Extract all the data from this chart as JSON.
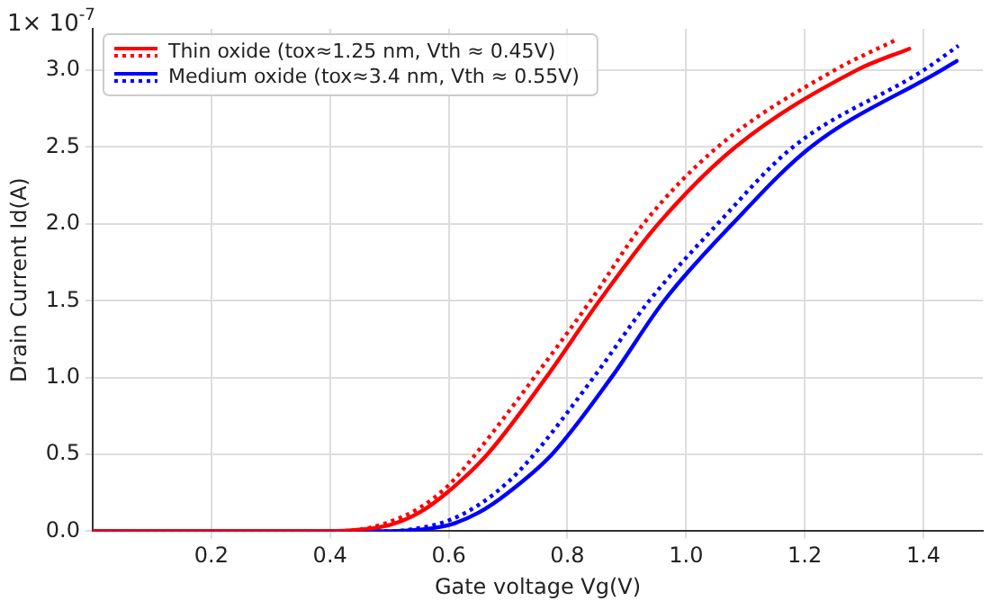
{
  "chart_data": {
    "type": "line",
    "xlabel": "Gate voltage Vg(V)",
    "ylabel": "Drain Current Id(A)",
    "annotations": [
      "1× 10$^{-7}$"
    ],
    "xlim": [
      0,
      1.5
    ],
    "ylim": [
      0,
      3.27
    ],
    "xticks": [
      0.2,
      0.4,
      0.6,
      0.8,
      {
        "value": 1,
        "label": "1.0"
      },
      1.2,
      1.4
    ],
    "yticks": [
      {
        "value": 0,
        "label": "0.0"
      },
      0.5,
      {
        "value": 1,
        "label": "1.0"
      },
      1.5,
      {
        "value": 2,
        "label": "2.0"
      },
      2.5,
      {
        "value": 3,
        "label": "3.0"
      }
    ],
    "grid": true,
    "legend": "top left",
    "marker": "none",
    "series": [
      {
        "name": "Thin oxide (tox≈1.25 nm, Vth ≈ 0.45V)",
        "color": "#ff0000",
        "line_style": "solid",
        "x": [
          0,
          0.4,
          0.45,
          0.5,
          0.55,
          0.6,
          0.665,
          0.764,
          0.854,
          0.953,
          1.083,
          1.287,
          1.376
        ],
        "values": [
          0,
          0,
          0.01,
          0.04,
          0.12,
          0.26,
          0.5,
          1.0,
          1.5,
          2.0,
          2.5,
          3.0,
          3.14
        ]
      },
      {
        "color": "#ff0000",
        "line_style": "dotted",
        "x": [
          0,
          0.4,
          0.45,
          0.5,
          0.55,
          0.6,
          0.645,
          0.744,
          0.839,
          0.928,
          1.053,
          1.25,
          1.355
        ],
        "values": [
          0,
          0,
          0.01,
          0.06,
          0.15,
          0.3,
          0.5,
          1.0,
          1.5,
          2.0,
          2.5,
          3.0,
          3.2
        ]
      },
      {
        "name": "Medium oxide (tox≈3.4 nm, Vth ≈ 0.55V)",
        "color": "#0000ff",
        "line_style": "solid",
        "x": [
          0,
          0.5,
          0.55,
          0.6,
          0.65,
          0.7,
          0.774,
          0.874,
          0.963,
          1.078,
          1.21,
          1.43,
          1.456
        ],
        "values": [
          0,
          0,
          0.01,
          0.04,
          0.12,
          0.25,
          0.5,
          1.0,
          1.5,
          2.0,
          2.5,
          3.0,
          3.06
        ]
      },
      {
        "color": "#0000ff",
        "line_style": "dotted",
        "x": [
          0,
          0.5,
          0.55,
          0.6,
          0.65,
          0.7,
          0.744,
          0.844,
          0.938,
          1.053,
          1.18,
          1.4,
          1.459
        ],
        "values": [
          0,
          0,
          0.02,
          0.07,
          0.17,
          0.32,
          0.5,
          1.0,
          1.5,
          2.0,
          2.5,
          3.0,
          3.16
        ]
      }
    ]
  }
}
